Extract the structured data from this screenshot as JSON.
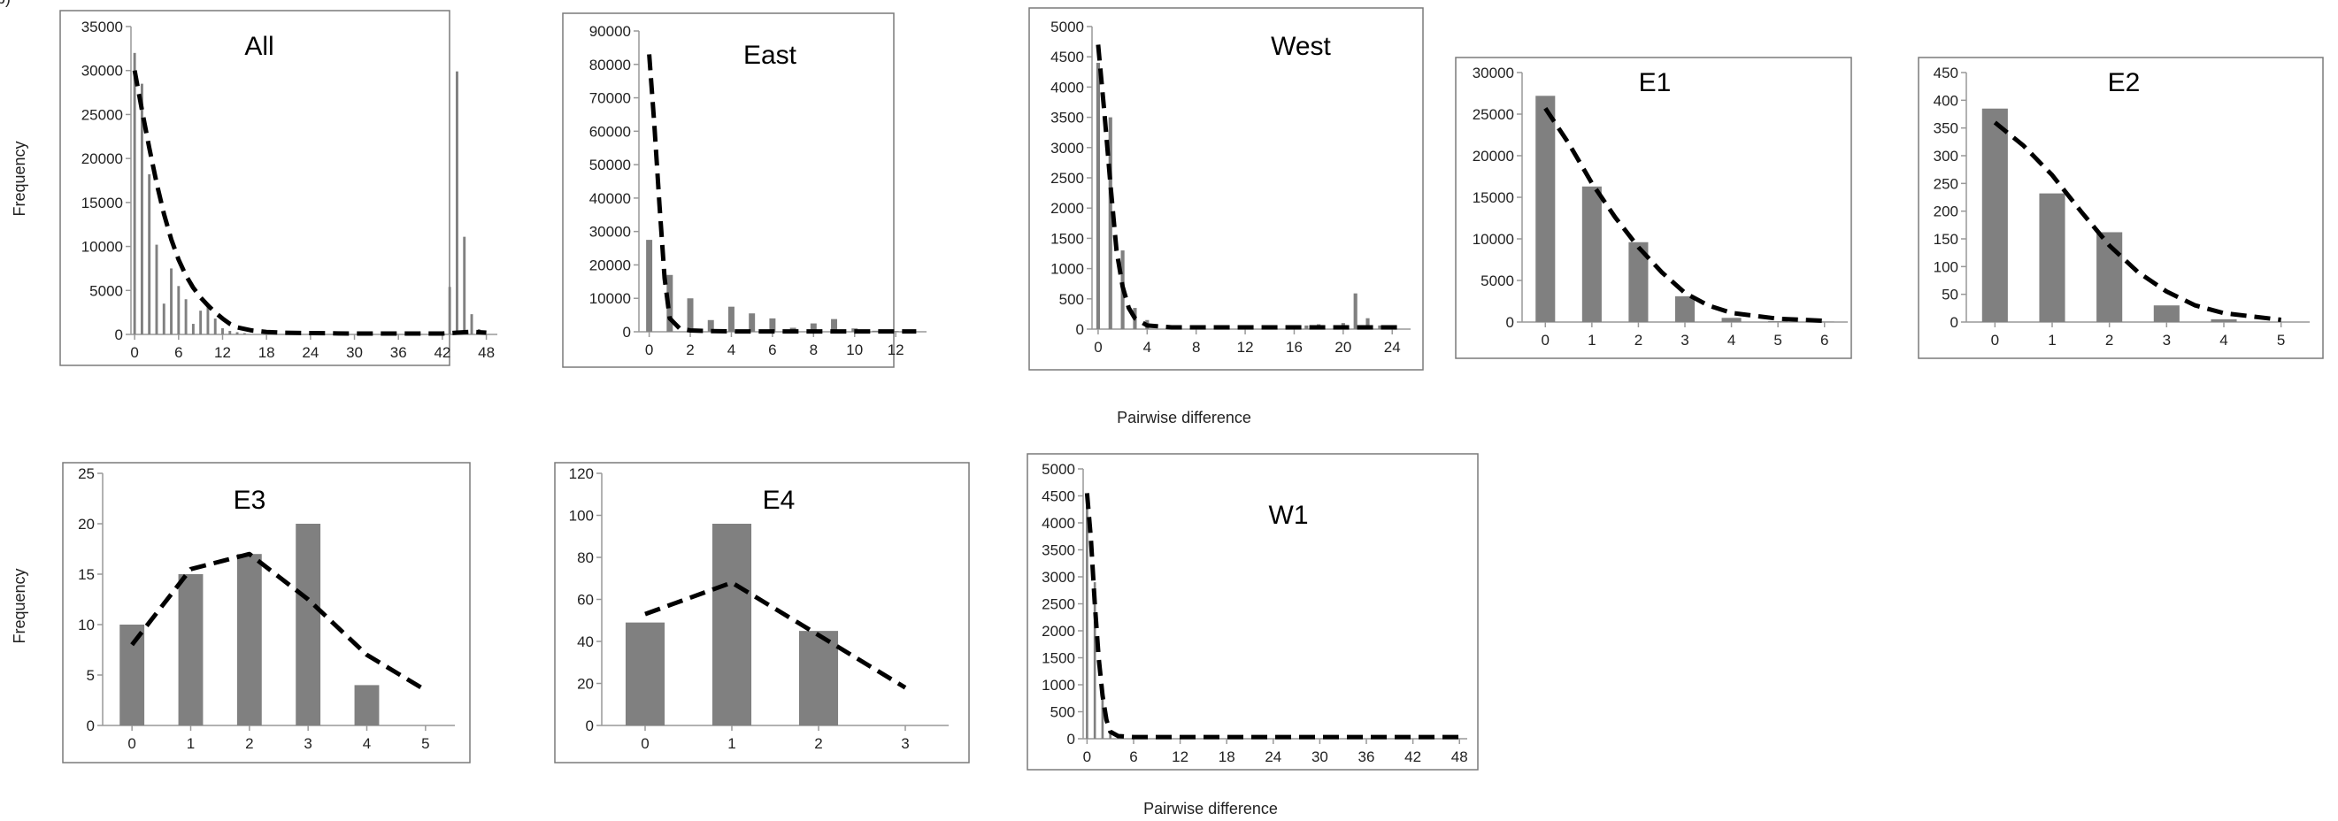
{
  "figure": {
    "panel_letter": "b)",
    "ylabel": "Frequency",
    "xlabel": "Pairwise difference",
    "bar_color": "#808080",
    "fit_color": "#000000"
  },
  "chart_data": [
    {
      "type": "bar",
      "title": "All",
      "yticks": [
        0,
        5000,
        10000,
        15000,
        20000,
        25000,
        30000,
        35000
      ],
      "xticks": [
        0,
        6,
        12,
        18,
        24,
        30,
        36,
        42,
        48
      ],
      "xlim": [
        -0.5,
        49.5
      ],
      "ylim": [
        0,
        35000
      ],
      "bar_width_units": 0.35,
      "bars": [
        [
          0,
          32000
        ],
        [
          1,
          28500
        ],
        [
          2,
          18200
        ],
        [
          3,
          10200
        ],
        [
          4,
          3500
        ],
        [
          5,
          7500
        ],
        [
          6,
          5500
        ],
        [
          7,
          4000
        ],
        [
          8,
          1200
        ],
        [
          9,
          2700
        ],
        [
          10,
          3200
        ],
        [
          11,
          1800
        ],
        [
          12,
          700
        ],
        [
          13,
          400
        ],
        [
          14,
          250
        ],
        [
          15,
          150
        ],
        [
          43,
          5400
        ],
        [
          44,
          29900
        ],
        [
          45,
          11100
        ],
        [
          46,
          2300
        ],
        [
          47,
          600
        ]
      ],
      "fit": [
        [
          0,
          30000
        ],
        [
          1,
          25500
        ],
        [
          2,
          21200
        ],
        [
          3,
          17200
        ],
        [
          4,
          13700
        ],
        [
          5,
          10800
        ],
        [
          6,
          8500
        ],
        [
          7,
          6700
        ],
        [
          8,
          5300
        ],
        [
          9,
          4200
        ],
        [
          10,
          3300
        ],
        [
          11,
          2500
        ],
        [
          12,
          1800
        ],
        [
          13,
          1200
        ],
        [
          14,
          800
        ],
        [
          16,
          450
        ],
        [
          18,
          280
        ],
        [
          20,
          200
        ],
        [
          24,
          150
        ],
        [
          30,
          100
        ],
        [
          36,
          100
        ],
        [
          42,
          100
        ],
        [
          44,
          200
        ],
        [
          46,
          300
        ],
        [
          48,
          200
        ]
      ]
    },
    {
      "type": "bar",
      "title": "East",
      "yticks": [
        0,
        10000,
        20000,
        30000,
        40000,
        50000,
        60000,
        70000,
        80000,
        90000
      ],
      "xticks": [
        0,
        2,
        4,
        6,
        8,
        10,
        12
      ],
      "xlim": [
        -0.5,
        13.5
      ],
      "ylim": [
        0,
        90000
      ],
      "bar_width_units": 0.3,
      "bars": [
        [
          0,
          27500
        ],
        [
          1,
          17000
        ],
        [
          2,
          10000
        ],
        [
          3,
          3500
        ],
        [
          4,
          7500
        ],
        [
          5,
          5500
        ],
        [
          6,
          4000
        ],
        [
          7,
          1200
        ],
        [
          8,
          2500
        ],
        [
          9,
          3800
        ],
        [
          10,
          1000
        ],
        [
          11,
          300
        ],
        [
          12,
          200
        ]
      ],
      "fit": [
        [
          0,
          83000
        ],
        [
          0.25,
          62000
        ],
        [
          0.5,
          38000
        ],
        [
          0.75,
          16000
        ],
        [
          1,
          4000
        ],
        [
          1.5,
          900
        ],
        [
          2,
          400
        ],
        [
          3,
          200
        ],
        [
          4,
          100
        ],
        [
          6,
          100
        ],
        [
          8,
          100
        ],
        [
          10,
          100
        ],
        [
          12,
          100
        ],
        [
          13,
          100
        ]
      ]
    },
    {
      "type": "bar",
      "title": "West",
      "yticks": [
        0,
        500,
        1000,
        1500,
        2000,
        2500,
        3000,
        3500,
        4000,
        4500,
        5000
      ],
      "xticks": [
        0,
        4,
        8,
        12,
        16,
        20,
        24
      ],
      "xlim": [
        -0.5,
        25.5
      ],
      "ylim": [
        0,
        5000
      ],
      "bar_width_units": 0.3,
      "bars": [
        [
          0,
          4400
        ],
        [
          1,
          3500
        ],
        [
          2,
          1300
        ],
        [
          3,
          350
        ],
        [
          4,
          150
        ],
        [
          17,
          60
        ],
        [
          18,
          80
        ],
        [
          20,
          100
        ],
        [
          21,
          590
        ],
        [
          22,
          180
        ],
        [
          23,
          60
        ]
      ],
      "fit": [
        [
          0,
          4700
        ],
        [
          0.5,
          3600
        ],
        [
          1,
          2400
        ],
        [
          1.5,
          1300
        ],
        [
          2,
          700
        ],
        [
          2.5,
          350
        ],
        [
          3,
          180
        ],
        [
          4,
          60
        ],
        [
          6,
          30
        ],
        [
          10,
          30
        ],
        [
          14,
          30
        ],
        [
          18,
          30
        ],
        [
          22,
          30
        ],
        [
          25,
          30
        ]
      ]
    },
    {
      "type": "bar",
      "title": "E1",
      "yticks": [
        0,
        5000,
        10000,
        15000,
        20000,
        25000,
        30000
      ],
      "xticks": [
        0,
        1,
        2,
        3,
        4,
        5,
        6
      ],
      "xlim": [
        -0.5,
        6.5
      ],
      "ylim": [
        0,
        30000
      ],
      "bar_width_units": 0.42,
      "bars": [
        [
          0,
          27200
        ],
        [
          1,
          16300
        ],
        [
          2,
          9600
        ],
        [
          3,
          3100
        ],
        [
          4,
          500
        ],
        [
          5,
          100
        ],
        [
          6,
          50
        ]
      ],
      "fit": [
        [
          0,
          25700
        ],
        [
          0.5,
          21500
        ],
        [
          1,
          16700
        ],
        [
          1.5,
          12600
        ],
        [
          2,
          9000
        ],
        [
          2.5,
          6000
        ],
        [
          3,
          3500
        ],
        [
          3.5,
          2000
        ],
        [
          4,
          1100
        ],
        [
          5,
          400
        ],
        [
          6,
          150
        ]
      ]
    },
    {
      "type": "bar",
      "title": "E2",
      "yticks": [
        0,
        50,
        100,
        150,
        200,
        250,
        300,
        350,
        400,
        450
      ],
      "xticks": [
        0,
        1,
        2,
        3,
        4,
        5
      ],
      "xlim": [
        -0.5,
        5.5
      ],
      "ylim": [
        0,
        450
      ],
      "bar_width_units": 0.45,
      "bars": [
        [
          0,
          385
        ],
        [
          1,
          232
        ],
        [
          2,
          162
        ],
        [
          3,
          30
        ],
        [
          4,
          5
        ]
      ],
      "fit": [
        [
          0,
          360
        ],
        [
          0.5,
          318
        ],
        [
          1,
          265
        ],
        [
          1.5,
          200
        ],
        [
          2,
          138
        ],
        [
          2.5,
          90
        ],
        [
          3,
          55
        ],
        [
          3.5,
          30
        ],
        [
          4,
          16
        ],
        [
          4.5,
          10
        ],
        [
          5,
          4
        ]
      ]
    },
    {
      "type": "bar",
      "title": "E3",
      "yticks": [
        0,
        5,
        10,
        15,
        20,
        25
      ],
      "xticks": [
        0,
        1,
        2,
        3,
        4,
        5
      ],
      "xlim": [
        -0.5,
        5.5
      ],
      "ylim": [
        0,
        25
      ],
      "bar_width_units": 0.42,
      "bars": [
        [
          0,
          10
        ],
        [
          1,
          15
        ],
        [
          2,
          17
        ],
        [
          3,
          20
        ],
        [
          4,
          4
        ]
      ],
      "fit": [
        [
          0,
          8
        ],
        [
          1,
          15.5
        ],
        [
          2,
          17
        ],
        [
          3,
          12.5
        ],
        [
          4,
          7
        ],
        [
          5,
          3.5
        ]
      ]
    },
    {
      "type": "bar",
      "title": "E4",
      "yticks": [
        0,
        20,
        40,
        60,
        80,
        100,
        120
      ],
      "xticks": [
        0,
        1,
        2,
        3
      ],
      "xlim": [
        -0.5,
        3.5
      ],
      "ylim": [
        0,
        120
      ],
      "bar_width_units": 0.45,
      "bars": [
        [
          0,
          49
        ],
        [
          1,
          96
        ],
        [
          2,
          45
        ]
      ],
      "fit": [
        [
          0,
          53
        ],
        [
          1,
          68
        ],
        [
          2,
          43
        ],
        [
          3,
          18
        ]
      ]
    },
    {
      "type": "bar",
      "title": "W1",
      "yticks": [
        0,
        500,
        1000,
        1500,
        2000,
        2500,
        3000,
        3500,
        4000,
        4500,
        5000
      ],
      "xticks": [
        0,
        6,
        12,
        18,
        24,
        30,
        36,
        42,
        48
      ],
      "xlim": [
        -0.5,
        49
      ],
      "ylim": [
        0,
        5000
      ],
      "bar_width_units": 0.3,
      "bars": [
        [
          0,
          4300
        ],
        [
          1,
          2900
        ],
        [
          2,
          900
        ],
        [
          3,
          150
        ],
        [
          4,
          40
        ]
      ],
      "fit": [
        [
          0,
          4550
        ],
        [
          0.5,
          3700
        ],
        [
          1,
          2500
        ],
        [
          1.5,
          1500
        ],
        [
          2,
          800
        ],
        [
          2.5,
          350
        ],
        [
          3,
          130
        ],
        [
          4,
          50
        ],
        [
          6,
          30
        ],
        [
          12,
          30
        ],
        [
          18,
          30
        ],
        [
          24,
          30
        ],
        [
          30,
          30
        ],
        [
          36,
          30
        ],
        [
          42,
          30
        ],
        [
          48,
          30
        ]
      ]
    }
  ]
}
